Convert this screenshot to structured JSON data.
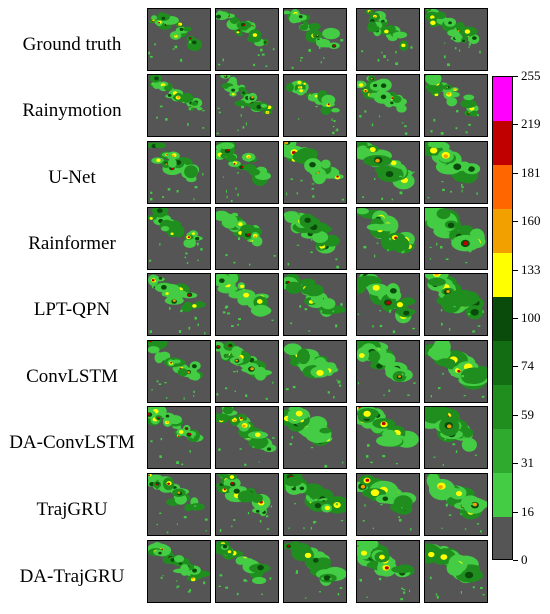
{
  "rows": [
    {
      "label": "Ground truth"
    },
    {
      "label": "Rainymotion"
    },
    {
      "label": "U-Net"
    },
    {
      "label": "Rainformer"
    },
    {
      "label": "LPT-QPN"
    },
    {
      "label": "ConvLSTM"
    },
    {
      "label": "DA-ConvLSTM"
    },
    {
      "label": "TrajGRU"
    },
    {
      "label": "DA-TrajGRU"
    }
  ],
  "colorbar": {
    "ticks": [
      "255",
      "219",
      "181",
      "160",
      "133",
      "100",
      "74",
      "59",
      "31",
      "16",
      "0"
    ],
    "colors": [
      "#ff00ff",
      "#c00000",
      "#ff6600",
      "#f2a000",
      "#ffff00",
      "#0a4a0a",
      "#136e13",
      "#1f8e1f",
      "#2faa2f",
      "#44cc44",
      "#555555"
    ]
  },
  "colors": {
    "background": "#555555",
    "green_light": "#44cc44",
    "green": "#1f8e1f",
    "green_dark": "#0a4a0a",
    "yellow": "#ffff00",
    "orange": "#f2a000",
    "red": "#c00000"
  }
}
